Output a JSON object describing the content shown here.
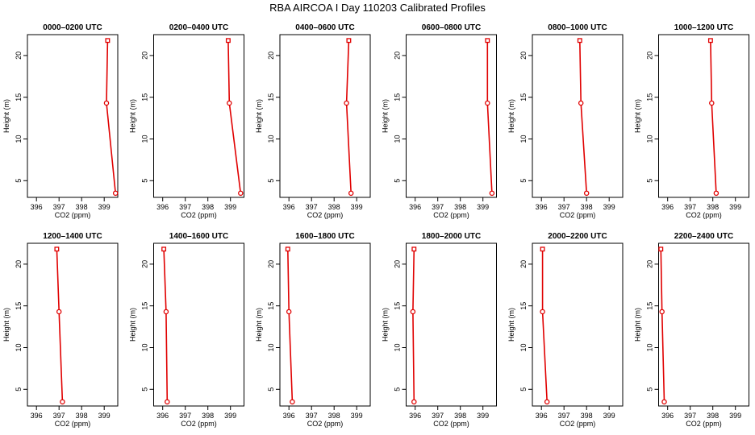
{
  "figure": {
    "title": "RBA AIRCOA I  Day 110203  Calibrated Profiles",
    "profile_color": "#e00000"
  },
  "chart_data": [
    {
      "type": "line",
      "title": "0000–0200 UTC",
      "xlabel": "CO2 (ppm)",
      "ylabel": "Height (m)",
      "xlim": [
        395.6,
        399.6
      ],
      "ylim": [
        3,
        22.5
      ],
      "xticks": [
        396,
        397,
        398,
        399
      ],
      "yticks": [
        5,
        10,
        15,
        20
      ],
      "x": [
        399.5,
        399.1,
        399.15
      ],
      "y": [
        3.5,
        14.3,
        21.8
      ],
      "grid": false
    },
    {
      "type": "line",
      "title": "0200–0400 UTC",
      "xlabel": "CO2 (ppm)",
      "ylabel": "Height (m)",
      "xlim": [
        395.6,
        399.6
      ],
      "ylim": [
        3,
        22.5
      ],
      "xticks": [
        396,
        397,
        398,
        399
      ],
      "yticks": [
        5,
        10,
        15,
        20
      ],
      "x": [
        399.45,
        398.95,
        398.9
      ],
      "y": [
        3.5,
        14.3,
        21.8
      ],
      "grid": false
    },
    {
      "type": "line",
      "title": "0400–0600 UTC",
      "xlabel": "CO2 (ppm)",
      "ylabel": "Height (m)",
      "xlim": [
        395.6,
        399.6
      ],
      "ylim": [
        3,
        22.5
      ],
      "xticks": [
        396,
        397,
        398,
        399
      ],
      "yticks": [
        5,
        10,
        15,
        20
      ],
      "x": [
        398.75,
        398.55,
        398.65
      ],
      "y": [
        3.5,
        14.3,
        21.8
      ],
      "grid": false
    },
    {
      "type": "line",
      "title": "0600–0800 UTC",
      "xlabel": "CO2 (ppm)",
      "ylabel": "Height (m)",
      "xlim": [
        395.6,
        399.6
      ],
      "ylim": [
        3,
        22.5
      ],
      "xticks": [
        396,
        397,
        398,
        399
      ],
      "yticks": [
        5,
        10,
        15,
        20
      ],
      "x": [
        399.4,
        399.2,
        399.2
      ],
      "y": [
        3.5,
        14.3,
        21.8
      ],
      "grid": false
    },
    {
      "type": "line",
      "title": "0800–1000 UTC",
      "xlabel": "CO2 (ppm)",
      "ylabel": "Height (m)",
      "xlim": [
        395.6,
        399.6
      ],
      "ylim": [
        3,
        22.5
      ],
      "xticks": [
        396,
        397,
        398,
        399
      ],
      "yticks": [
        5,
        10,
        15,
        20
      ],
      "x": [
        398.0,
        397.75,
        397.7
      ],
      "y": [
        3.5,
        14.3,
        21.8
      ],
      "grid": false
    },
    {
      "type": "line",
      "title": "1000–1200 UTC",
      "xlabel": "CO2 (ppm)",
      "ylabel": "Height (m)",
      "xlim": [
        395.6,
        399.6
      ],
      "ylim": [
        3,
        22.5
      ],
      "xticks": [
        396,
        397,
        398,
        399
      ],
      "yticks": [
        5,
        10,
        15,
        20
      ],
      "x": [
        398.15,
        397.95,
        397.9
      ],
      "y": [
        3.5,
        14.3,
        21.8
      ],
      "grid": false
    },
    {
      "type": "line",
      "title": "1200–1400 UTC",
      "xlabel": "CO2 (ppm)",
      "ylabel": "Height (m)",
      "xlim": [
        395.6,
        399.6
      ],
      "ylim": [
        3,
        22.5
      ],
      "xticks": [
        396,
        397,
        398,
        399
      ],
      "yticks": [
        5,
        10,
        15,
        20
      ],
      "x": [
        397.15,
        397.0,
        396.9
      ],
      "y": [
        3.5,
        14.3,
        21.8
      ],
      "grid": false
    },
    {
      "type": "line",
      "title": "1400–1600 UTC",
      "xlabel": "CO2 (ppm)",
      "ylabel": "Height (m)",
      "xlim": [
        395.6,
        399.6
      ],
      "ylim": [
        3,
        22.5
      ],
      "xticks": [
        396,
        397,
        398,
        399
      ],
      "yticks": [
        5,
        10,
        15,
        20
      ],
      "x": [
        396.2,
        396.15,
        396.05
      ],
      "y": [
        3.5,
        14.3,
        21.8
      ],
      "grid": false
    },
    {
      "type": "line",
      "title": "1600–1800 UTC",
      "xlabel": "CO2 (ppm)",
      "ylabel": "Height (m)",
      "xlim": [
        395.6,
        399.6
      ],
      "ylim": [
        3,
        22.5
      ],
      "xticks": [
        396,
        397,
        398,
        399
      ],
      "yticks": [
        5,
        10,
        15,
        20
      ],
      "x": [
        396.15,
        396.0,
        395.95
      ],
      "y": [
        3.5,
        14.3,
        21.8
      ],
      "grid": false
    },
    {
      "type": "line",
      "title": "1800–2000 UTC",
      "xlabel": "CO2 (ppm)",
      "ylabel": "Height (m)",
      "xlim": [
        395.6,
        399.6
      ],
      "ylim": [
        3,
        22.5
      ],
      "xticks": [
        396,
        397,
        398,
        399
      ],
      "yticks": [
        5,
        10,
        15,
        20
      ],
      "x": [
        395.95,
        395.9,
        395.95
      ],
      "y": [
        3.5,
        14.3,
        21.8
      ],
      "grid": false
    },
    {
      "type": "line",
      "title": "2000–2200 UTC",
      "xlabel": "CO2 (ppm)",
      "ylabel": "Height (m)",
      "xlim": [
        395.6,
        399.6
      ],
      "ylim": [
        3,
        22.5
      ],
      "xticks": [
        396,
        397,
        398,
        399
      ],
      "yticks": [
        5,
        10,
        15,
        20
      ],
      "x": [
        396.25,
        396.05,
        396.05
      ],
      "y": [
        3.5,
        14.3,
        21.8
      ],
      "grid": false
    },
    {
      "type": "line",
      "title": "2200–2400 UTC",
      "xlabel": "CO2 (ppm)",
      "ylabel": "Height (m)",
      "xlim": [
        395.6,
        399.6
      ],
      "ylim": [
        3,
        22.5
      ],
      "xticks": [
        396,
        397,
        398,
        399
      ],
      "yticks": [
        5,
        10,
        15,
        20
      ],
      "x": [
        395.85,
        395.75,
        395.7
      ],
      "y": [
        3.5,
        14.3,
        21.8
      ],
      "grid": false
    }
  ]
}
